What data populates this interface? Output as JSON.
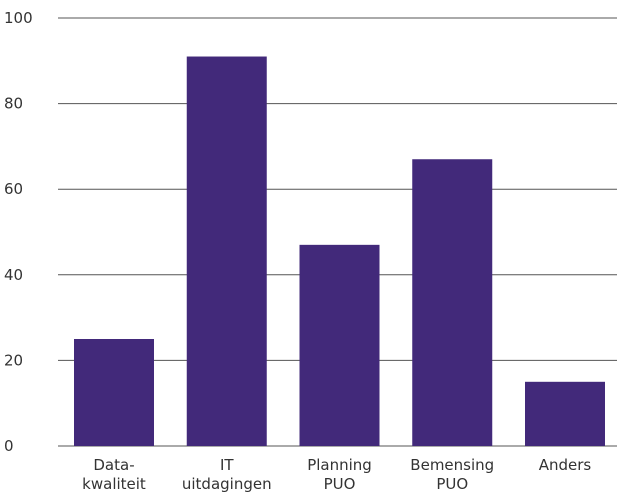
{
  "chart_data": {
    "type": "bar",
    "categories": [
      [
        "Data-",
        "kwaliteit"
      ],
      [
        "IT",
        "uitdagingen"
      ],
      [
        "Planning",
        "PUO"
      ],
      [
        "Bemensing",
        "PUO"
      ],
      [
        "Anders"
      ]
    ],
    "values": [
      25,
      91,
      47,
      67,
      15
    ],
    "ylim": [
      0,
      100
    ],
    "yticks": [
      0,
      20,
      40,
      60,
      80,
      100
    ],
    "grid": true,
    "title": "",
    "xlabel": "",
    "ylabel": "",
    "colors": {
      "bar": "#42297a",
      "grid": "#555555",
      "text": "#333333"
    }
  }
}
